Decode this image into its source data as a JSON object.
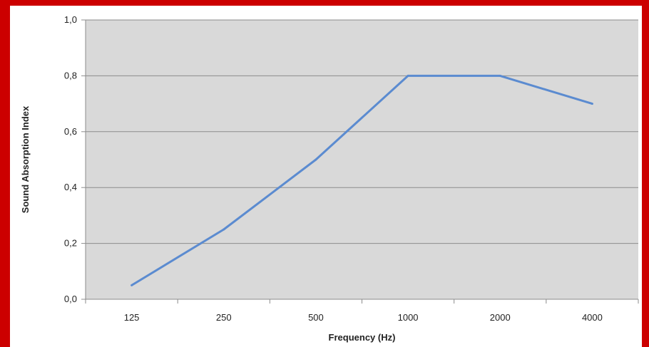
{
  "chart_data": {
    "type": "line",
    "title": "",
    "xlabel": "Frequency (Hz)",
    "ylabel": "Sound Absorption Index",
    "categories": [
      "125",
      "250",
      "500",
      "1000",
      "2000",
      "4000"
    ],
    "series": [
      {
        "values": [
          0.05,
          0.25,
          0.5,
          0.8,
          0.8,
          0.7
        ],
        "color": "#5b8bd0"
      }
    ],
    "ylim": [
      0,
      1.0
    ],
    "yticks": [
      "0,0",
      "0,2",
      "0,4",
      "0,6",
      "0,8",
      "1,0"
    ],
    "grid": true,
    "legend": "none",
    "plot_background": "#d9d9d9",
    "frame_color": "#cc0000"
  }
}
